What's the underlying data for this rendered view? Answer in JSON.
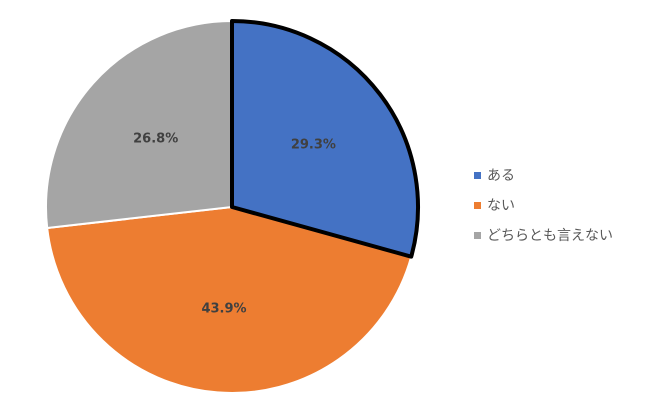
{
  "chart_data": {
    "type": "pie",
    "categories": [
      "ある",
      "ない",
      "どちらとも言えない"
    ],
    "values": [
      29.3,
      43.9,
      26.8
    ],
    "data_labels": [
      "29.3%",
      "43.9%",
      "26.8%"
    ],
    "colors": [
      "#4472C4",
      "#ED7D31",
      "#A5A5A5"
    ],
    "highlighted": "ある",
    "legend_position": "right",
    "start_angle": "12 o'clock",
    "direction": "clockwise"
  }
}
